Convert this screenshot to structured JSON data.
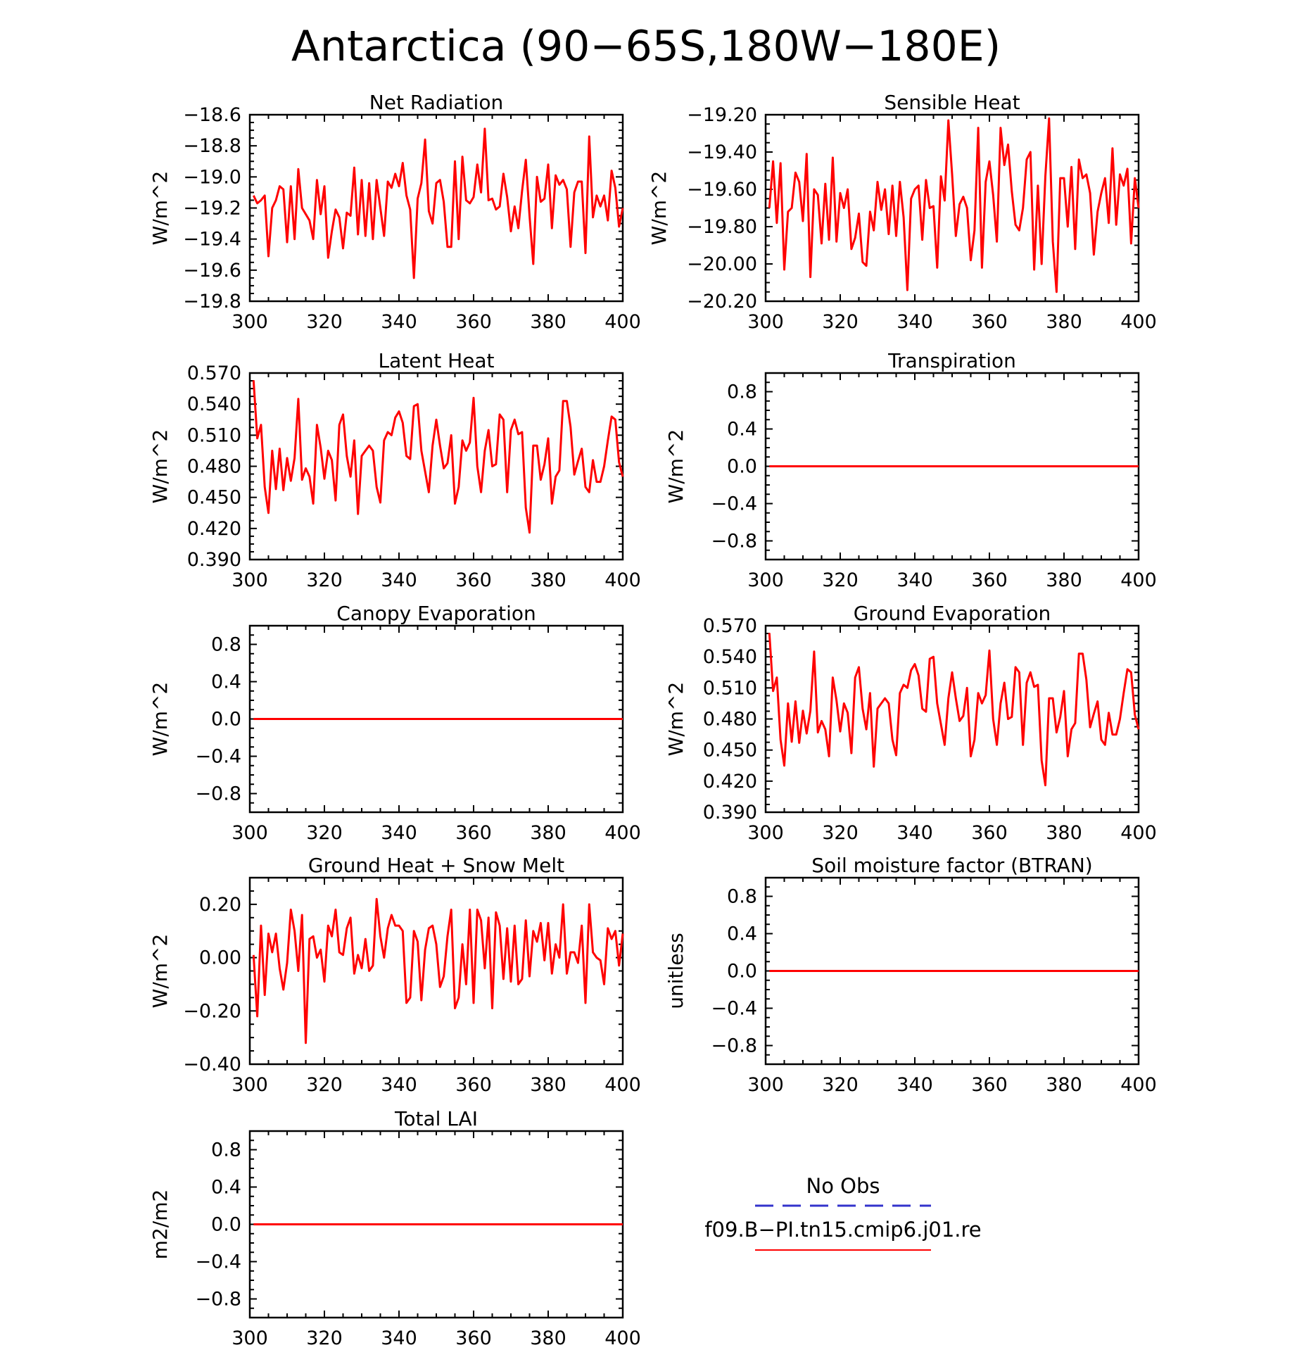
{
  "figure_title": "Antarctica (90−65S,180W−180E)",
  "colors": {
    "model_line": "#ff0000",
    "obs_line": "#3333cc",
    "axis": "#000000"
  },
  "legend": {
    "obs_label": "No Obs",
    "model_label": "f09.B−PI.tn15.cmip6.j01.re"
  },
  "chart_data": [
    {
      "type": "line",
      "title": "Net Radiation",
      "ylabel": "W/m^2",
      "xlim": [
        300,
        400
      ],
      "ylim": [
        -19.8,
        -18.6
      ],
      "xticks": [
        300,
        320,
        340,
        360,
        380,
        400
      ],
      "xtick_labels": [
        "300",
        "320",
        "340",
        "360",
        "380",
        "400"
      ],
      "yticks": [
        -19.8,
        -19.6,
        -19.4,
        -19.2,
        -19.0,
        -18.8,
        -18.6
      ],
      "ytick_labels": [
        "−19.8",
        "−19.6",
        "−19.4",
        "−19.2",
        "−19.0",
        "−18.8",
        "−18.6"
      ],
      "x_start": 301,
      "x_step": 1,
      "values": [
        -19.12,
        -19.17,
        -19.15,
        -19.12,
        -19.51,
        -19.2,
        -19.15,
        -19.06,
        -19.08,
        -19.42,
        -19.06,
        -19.4,
        -18.95,
        -19.2,
        -19.24,
        -19.28,
        -19.4,
        -19.02,
        -19.24,
        -19.06,
        -19.52,
        -19.35,
        -19.21,
        -19.26,
        -19.46,
        -19.23,
        -19.25,
        -18.94,
        -19.37,
        -19.02,
        -19.38,
        -19.04,
        -19.4,
        -19.02,
        -19.2,
        -19.38,
        -19.03,
        -19.07,
        -18.98,
        -19.06,
        -18.91,
        -19.12,
        -19.21,
        -19.65,
        -19.14,
        -19.04,
        -18.76,
        -19.22,
        -19.3,
        -19.04,
        -19.02,
        -19.16,
        -19.45,
        -19.45,
        -18.9,
        -19.4,
        -18.87,
        -19.15,
        -19.17,
        -19.13,
        -18.92,
        -19.1,
        -18.69,
        -19.15,
        -19.14,
        -19.21,
        -19.19,
        -18.98,
        -19.13,
        -19.35,
        -19.19,
        -19.33,
        -19.09,
        -18.89,
        -19.25,
        -19.56,
        -19.0,
        -19.16,
        -19.14,
        -18.92,
        -19.33,
        -18.99,
        -19.05,
        -19.02,
        -19.08,
        -19.45,
        -19.1,
        -19.03,
        -19.03,
        -19.49,
        -18.74,
        -19.26,
        -19.12,
        -19.19,
        -19.12,
        -19.28,
        -18.96,
        -19.07,
        -19.32,
        -19.2
      ]
    },
    {
      "type": "line",
      "title": "Sensible Heat",
      "ylabel": "W/m^2",
      "xlim": [
        300,
        400
      ],
      "ylim": [
        -20.2,
        -19.2
      ],
      "xticks": [
        300,
        320,
        340,
        360,
        380,
        400
      ],
      "xtick_labels": [
        "300",
        "320",
        "340",
        "360",
        "380",
        "400"
      ],
      "yticks": [
        -20.2,
        -20.0,
        -19.8,
        -19.6,
        -19.4,
        -19.2
      ],
      "ytick_labels": [
        "−20.20",
        "−20.00",
        "−19.80",
        "−19.60",
        "−19.40",
        "−19.20"
      ],
      "x_start": 301,
      "x_step": 1,
      "values": [
        -19.7,
        -19.45,
        -19.78,
        -19.46,
        -20.03,
        -19.72,
        -19.7,
        -19.51,
        -19.56,
        -19.77,
        -19.41,
        -20.07,
        -19.6,
        -19.63,
        -19.89,
        -19.57,
        -19.87,
        -19.43,
        -19.88,
        -19.62,
        -19.7,
        -19.6,
        -19.92,
        -19.86,
        -19.73,
        -19.99,
        -20.01,
        -19.72,
        -19.82,
        -19.56,
        -19.71,
        -19.6,
        -19.84,
        -19.58,
        -19.85,
        -19.56,
        -19.75,
        -20.14,
        -19.65,
        -19.6,
        -19.58,
        -19.87,
        -19.55,
        -19.7,
        -19.69,
        -20.02,
        -19.53,
        -19.66,
        -19.23,
        -19.52,
        -19.85,
        -19.68,
        -19.64,
        -19.7,
        -19.98,
        -19.82,
        -19.27,
        -20.02,
        -19.56,
        -19.45,
        -19.63,
        -19.88,
        -19.27,
        -19.47,
        -19.36,
        -19.61,
        -19.79,
        -19.82,
        -19.7,
        -19.44,
        -19.4,
        -20.03,
        -19.58,
        -20.0,
        -19.53,
        -19.22,
        -19.88,
        -20.15,
        -19.54,
        -19.54,
        -19.8,
        -19.48,
        -19.92,
        -19.44,
        -19.54,
        -19.52,
        -19.62,
        -19.95,
        -19.72,
        -19.62,
        -19.54,
        -19.78,
        -19.38,
        -19.79,
        -19.52,
        -19.58,
        -19.49,
        -19.89,
        -19.54,
        -19.7
      ]
    },
    {
      "type": "line",
      "title": "Latent Heat",
      "ylabel": "W/m^2",
      "xlim": [
        300,
        400
      ],
      "ylim": [
        0.39,
        0.57
      ],
      "xticks": [
        300,
        320,
        340,
        360,
        380,
        400
      ],
      "xtick_labels": [
        "300",
        "320",
        "340",
        "360",
        "380",
        "400"
      ],
      "yticks": [
        0.39,
        0.42,
        0.45,
        0.48,
        0.51,
        0.54,
        0.57
      ],
      "ytick_labels": [
        "0.390",
        "0.420",
        "0.450",
        "0.480",
        "0.510",
        "0.540",
        "0.570"
      ],
      "x_start": 301,
      "x_step": 1,
      "values": [
        0.563,
        0.507,
        0.52,
        0.46,
        0.435,
        0.495,
        0.458,
        0.497,
        0.457,
        0.488,
        0.466,
        0.488,
        0.545,
        0.467,
        0.478,
        0.47,
        0.444,
        0.52,
        0.498,
        0.468,
        0.495,
        0.486,
        0.447,
        0.52,
        0.53,
        0.49,
        0.47,
        0.505,
        0.434,
        0.49,
        0.495,
        0.5,
        0.495,
        0.46,
        0.445,
        0.505,
        0.513,
        0.51,
        0.527,
        0.533,
        0.522,
        0.49,
        0.487,
        0.538,
        0.54,
        0.495,
        0.475,
        0.455,
        0.5,
        0.525,
        0.5,
        0.478,
        0.483,
        0.51,
        0.444,
        0.46,
        0.505,
        0.495,
        0.503,
        0.546,
        0.48,
        0.455,
        0.495,
        0.515,
        0.48,
        0.482,
        0.53,
        0.525,
        0.455,
        0.515,
        0.525,
        0.511,
        0.513,
        0.44,
        0.416,
        0.5,
        0.5,
        0.467,
        0.482,
        0.507,
        0.444,
        0.47,
        0.476,
        0.543,
        0.543,
        0.518,
        0.472,
        0.485,
        0.497,
        0.46,
        0.455,
        0.486,
        0.465,
        0.465,
        0.48,
        0.505,
        0.528,
        0.525,
        0.484,
        0.47
      ]
    },
    {
      "type": "line",
      "title": "Transpiration",
      "ylabel": "W/m^2",
      "xlim": [
        300,
        400
      ],
      "ylim": [
        -1.0,
        1.0
      ],
      "xticks": [
        300,
        320,
        340,
        360,
        380,
        400
      ],
      "xtick_labels": [
        "300",
        "320",
        "340",
        "360",
        "380",
        "400"
      ],
      "yticks": [
        -0.8,
        -0.4,
        0.0,
        0.4,
        0.8
      ],
      "ytick_labels": [
        "−0.8",
        "−0.4",
        "0.0",
        "0.4",
        "0.8"
      ],
      "x": [
        301,
        400
      ],
      "values": [
        0,
        0
      ]
    },
    {
      "type": "line",
      "title": "Canopy Evaporation",
      "ylabel": "W/m^2",
      "xlim": [
        300,
        400
      ],
      "ylim": [
        -1.0,
        1.0
      ],
      "xticks": [
        300,
        320,
        340,
        360,
        380,
        400
      ],
      "xtick_labels": [
        "300",
        "320",
        "340",
        "360",
        "380",
        "400"
      ],
      "yticks": [
        -0.8,
        -0.4,
        0.0,
        0.4,
        0.8
      ],
      "ytick_labels": [
        "−0.8",
        "−0.4",
        "0.0",
        "0.4",
        "0.8"
      ],
      "x": [
        301,
        400
      ],
      "values": [
        0,
        0
      ]
    },
    {
      "type": "line",
      "title": "Ground Evaporation",
      "ylabel": "W/m^2",
      "xlim": [
        300,
        400
      ],
      "ylim": [
        0.39,
        0.57
      ],
      "xticks": [
        300,
        320,
        340,
        360,
        380,
        400
      ],
      "xtick_labels": [
        "300",
        "320",
        "340",
        "360",
        "380",
        "400"
      ],
      "yticks": [
        0.39,
        0.42,
        0.45,
        0.48,
        0.51,
        0.54,
        0.57
      ],
      "ytick_labels": [
        "0.390",
        "0.420",
        "0.450",
        "0.480",
        "0.510",
        "0.540",
        "0.570"
      ],
      "x_start": 301,
      "x_step": 1,
      "values": [
        0.563,
        0.507,
        0.52,
        0.46,
        0.435,
        0.495,
        0.458,
        0.497,
        0.457,
        0.488,
        0.466,
        0.488,
        0.545,
        0.467,
        0.478,
        0.47,
        0.444,
        0.52,
        0.498,
        0.468,
        0.495,
        0.486,
        0.447,
        0.52,
        0.53,
        0.49,
        0.47,
        0.505,
        0.434,
        0.49,
        0.495,
        0.5,
        0.495,
        0.46,
        0.445,
        0.505,
        0.513,
        0.51,
        0.527,
        0.533,
        0.522,
        0.49,
        0.487,
        0.538,
        0.54,
        0.495,
        0.475,
        0.455,
        0.5,
        0.525,
        0.5,
        0.478,
        0.483,
        0.51,
        0.444,
        0.46,
        0.505,
        0.495,
        0.503,
        0.546,
        0.48,
        0.455,
        0.495,
        0.515,
        0.48,
        0.482,
        0.53,
        0.525,
        0.455,
        0.515,
        0.525,
        0.511,
        0.513,
        0.44,
        0.416,
        0.5,
        0.5,
        0.467,
        0.482,
        0.507,
        0.444,
        0.47,
        0.476,
        0.543,
        0.543,
        0.518,
        0.472,
        0.485,
        0.497,
        0.46,
        0.455,
        0.486,
        0.465,
        0.465,
        0.48,
        0.505,
        0.528,
        0.525,
        0.484,
        0.47
      ]
    },
    {
      "type": "line",
      "title": "Ground Heat + Snow Melt",
      "ylabel": "W/m^2",
      "xlim": [
        300,
        400
      ],
      "ylim": [
        -0.4,
        0.3
      ],
      "xticks": [
        300,
        320,
        340,
        360,
        380,
        400
      ],
      "xtick_labels": [
        "300",
        "320",
        "340",
        "360",
        "380",
        "400"
      ],
      "yticks": [
        -0.4,
        -0.2,
        0.0,
        0.2
      ],
      "ytick_labels": [
        "−0.40",
        "−0.20",
        "0.00",
        "0.20"
      ],
      "x_start": 301,
      "x_step": 1,
      "values": [
        0.01,
        -0.22,
        0.12,
        -0.14,
        0.09,
        0.02,
        0.09,
        -0.04,
        -0.12,
        -0.02,
        0.18,
        0.1,
        -0.05,
        0.16,
        -0.32,
        0.07,
        0.08,
        0.0,
        0.03,
        -0.09,
        0.12,
        0.08,
        0.18,
        0.02,
        0.01,
        0.11,
        0.15,
        -0.06,
        0.01,
        -0.04,
        0.07,
        -0.05,
        -0.03,
        0.22,
        0.08,
        0.0,
        0.11,
        0.16,
        0.12,
        0.12,
        0.1,
        -0.17,
        -0.15,
        0.1,
        0.06,
        -0.16,
        0.03,
        0.11,
        0.12,
        0.05,
        -0.11,
        -0.07,
        0.08,
        0.18,
        -0.19,
        -0.15,
        0.05,
        -0.1,
        0.18,
        -0.17,
        0.18,
        0.14,
        -0.04,
        0.15,
        -0.19,
        0.17,
        0.12,
        -0.08,
        0.11,
        -0.09,
        0.12,
        -0.1,
        -0.08,
        0.14,
        -0.07,
        0.1,
        0.06,
        0.13,
        -0.01,
        0.13,
        -0.06,
        0.05,
        0.0,
        0.2,
        -0.06,
        0.02,
        0.02,
        -0.02,
        0.12,
        -0.17,
        0.2,
        0.02,
        0.0,
        -0.01,
        -0.1,
        0.11,
        0.07,
        0.1,
        -0.03,
        0.09
      ]
    },
    {
      "type": "line",
      "title": "Soil moisture factor (BTRAN)",
      "ylabel": "unitless",
      "xlim": [
        300,
        400
      ],
      "ylim": [
        -1.0,
        1.0
      ],
      "xticks": [
        300,
        320,
        340,
        360,
        380,
        400
      ],
      "xtick_labels": [
        "300",
        "320",
        "340",
        "360",
        "380",
        "400"
      ],
      "yticks": [
        -0.8,
        -0.4,
        0.0,
        0.4,
        0.8
      ],
      "ytick_labels": [
        "−0.8",
        "−0.4",
        "0.0",
        "0.4",
        "0.8"
      ],
      "x": [
        301,
        400
      ],
      "values": [
        0,
        0
      ]
    },
    {
      "type": "line",
      "title": "Total LAI",
      "ylabel": "m2/m2",
      "xlim": [
        300,
        400
      ],
      "ylim": [
        -1.0,
        1.0
      ],
      "xticks": [
        300,
        320,
        340,
        360,
        380,
        400
      ],
      "xtick_labels": [
        "300",
        "320",
        "340",
        "360",
        "380",
        "400"
      ],
      "yticks": [
        -0.8,
        -0.4,
        0.0,
        0.4,
        0.8
      ],
      "ytick_labels": [
        "−0.8",
        "−0.4",
        "0.0",
        "0.4",
        "0.8"
      ],
      "x": [
        301,
        400
      ],
      "values": [
        0,
        0
      ]
    }
  ]
}
